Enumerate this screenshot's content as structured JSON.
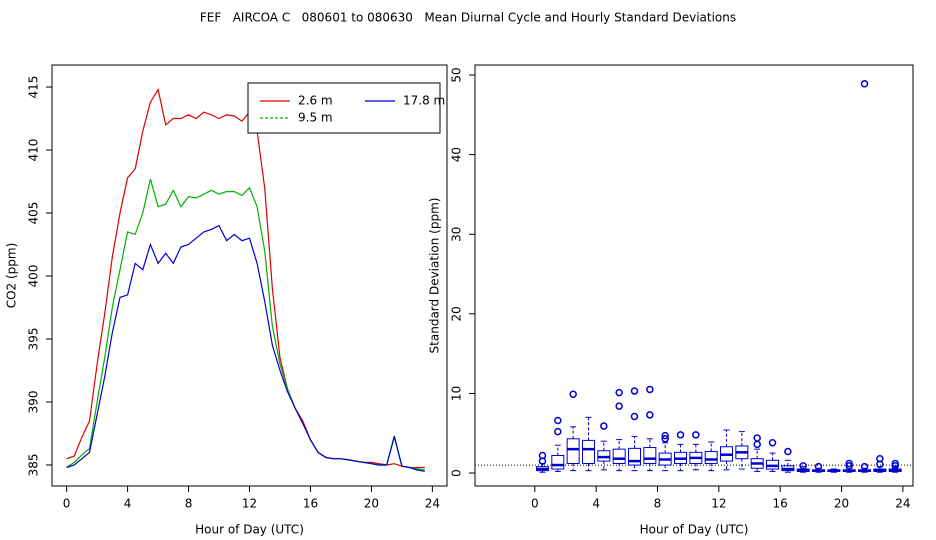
{
  "title": "FEF   AIRCOA C   080601 to 080630   Mean Diurnal Cycle and Hourly Standard Deviations",
  "chart_data": [
    {
      "type": "line",
      "xlabel": "Hour of Day (UTC)",
      "ylabel": "CO2 (ppm)",
      "xlim": [
        -0.96,
        24.96
      ],
      "ylim": [
        383.33,
        416.75
      ],
      "xticks": [
        0,
        4,
        8,
        12,
        16,
        20,
        24
      ],
      "yticks": [
        385,
        390,
        395,
        400,
        405,
        410,
        415
      ],
      "legend": "topright",
      "x": [
        0,
        0.5,
        1,
        1.5,
        2,
        2.5,
        3,
        3.5,
        4,
        4.5,
        5,
        5.5,
        6,
        6.5,
        7,
        7.5,
        8,
        8.5,
        9,
        9.5,
        10,
        10.5,
        11,
        11.5,
        12,
        12.5,
        13,
        13.5,
        14,
        14.5,
        15,
        15.5,
        16,
        16.5,
        17,
        17.5,
        18,
        18.5,
        19,
        19.5,
        20,
        20.5,
        21,
        21.5,
        22,
        22.5,
        23,
        23.5
      ],
      "series": [
        {
          "name": "2.6 m",
          "color": "#e00000",
          "values": [
            385.5,
            385.7,
            387.2,
            388.5,
            393,
            397,
            401.5,
            405,
            407.8,
            408.5,
            411.5,
            413.8,
            414.8,
            412,
            412.5,
            412.5,
            412.8,
            412.5,
            413,
            412.8,
            412.5,
            412.8,
            412.7,
            412.3,
            413,
            411.5,
            407,
            399,
            393.5,
            391,
            389.5,
            388.5,
            387,
            386,
            385.6,
            385.5,
            385.5,
            385.4,
            385.3,
            385.2,
            385.2,
            385.1,
            385,
            385.1,
            384.9,
            384.8,
            384.8,
            384.8
          ]
        },
        {
          "name": "9.5 m",
          "color": "#00b000",
          "values": [
            384.8,
            385.2,
            385.8,
            386.3,
            390,
            393.5,
            397.5,
            400.5,
            403.5,
            403.3,
            405,
            407.7,
            405.5,
            405.7,
            406.8,
            405.5,
            406.3,
            406.2,
            406.5,
            406.8,
            406.5,
            406.7,
            406.7,
            406.4,
            407,
            405.5,
            402,
            396,
            393,
            391,
            389.5,
            388.3,
            387,
            386,
            385.6,
            385.5,
            385.5,
            385.4,
            385.3,
            385.2,
            385.1,
            385,
            385,
            387.2,
            384.9,
            384.8,
            384.7,
            384.6
          ]
        },
        {
          "name": "17.8 m",
          "color": "#0000d0",
          "values": [
            384.8,
            385,
            385.5,
            386,
            389,
            392,
            395.5,
            398.3,
            398.5,
            401,
            400.5,
            402.5,
            401,
            401.8,
            401,
            402.3,
            402.5,
            403,
            403.5,
            403.7,
            404,
            402.8,
            403.3,
            402.8,
            403,
            401,
            398,
            394.5,
            392.5,
            390.8,
            389.5,
            388.3,
            387,
            386,
            385.6,
            385.5,
            385.5,
            385.4,
            385.3,
            385.2,
            385.1,
            385,
            385,
            387.3,
            384.9,
            384.8,
            384.6,
            384.5
          ]
        }
      ]
    },
    {
      "type": "boxplot",
      "xlabel": "Hour of Day (UTC)",
      "ylabel": "Standard Deviation (ppm)",
      "color": "#0000d0",
      "xlim": [
        -3.9,
        24.66
      ],
      "ylim": [
        -1.63,
        51.26
      ],
      "xticks": [
        0,
        4,
        8,
        12,
        16,
        20,
        24
      ],
      "yticks": [
        0,
        10,
        20,
        30,
        40,
        50
      ],
      "ref_line": 1,
      "x": [
        0.5,
        1.5,
        2.5,
        3.5,
        4.5,
        5.5,
        6.5,
        7.5,
        8.5,
        9.5,
        10.5,
        11.5,
        12.5,
        13.5,
        14.5,
        15.5,
        16.5,
        17.5,
        18.5,
        19.5,
        20.5,
        21.5,
        22.5,
        23.5
      ],
      "boxes": [
        {
          "min": 0.1,
          "q1": 0.3,
          "median": 0.5,
          "q3": 0.8,
          "max": 1.2,
          "outliers": [
            1.5,
            2.2
          ]
        },
        {
          "min": 0.2,
          "q1": 0.5,
          "median": 1.0,
          "q3": 2.2,
          "max": 3.5,
          "outliers": [
            5.2,
            6.6
          ]
        },
        {
          "min": 0.3,
          "q1": 1.2,
          "median": 3.0,
          "q3": 4.3,
          "max": 5.8,
          "outliers": [
            9.9
          ]
        },
        {
          "min": 0.3,
          "q1": 1.2,
          "median": 3.0,
          "q3": 4.1,
          "max": 7.0,
          "outliers": []
        },
        {
          "min": 0.4,
          "q1": 1.5,
          "median": 2.0,
          "q3": 2.8,
          "max": 4.0,
          "outliers": [
            5.9
          ]
        },
        {
          "min": 0.3,
          "q1": 1.2,
          "median": 1.8,
          "q3": 3.0,
          "max": 4.2,
          "outliers": [
            8.4,
            10.1
          ]
        },
        {
          "min": 0.3,
          "q1": 1.0,
          "median": 1.5,
          "q3": 3.1,
          "max": 4.6,
          "outliers": [
            7.1,
            10.3
          ]
        },
        {
          "min": 0.3,
          "q1": 1.2,
          "median": 1.8,
          "q3": 3.2,
          "max": 4.3,
          "outliers": [
            7.3,
            10.5
          ]
        },
        {
          "min": 0.3,
          "q1": 1.0,
          "median": 1.7,
          "q3": 2.5,
          "max": 3.8,
          "outliers": [
            4.3,
            4.7
          ]
        },
        {
          "min": 0.3,
          "q1": 1.2,
          "median": 1.8,
          "q3": 2.6,
          "max": 3.6,
          "outliers": [
            4.8
          ]
        },
        {
          "min": 0.4,
          "q1": 1.2,
          "median": 1.9,
          "q3": 2.6,
          "max": 3.6,
          "outliers": [
            4.8
          ]
        },
        {
          "min": 0.3,
          "q1": 1.2,
          "median": 1.7,
          "q3": 2.7,
          "max": 3.9,
          "outliers": []
        },
        {
          "min": 0.4,
          "q1": 1.5,
          "median": 2.3,
          "q3": 3.3,
          "max": 5.4,
          "outliers": []
        },
        {
          "min": 0.5,
          "q1": 1.8,
          "median": 2.6,
          "q3": 3.4,
          "max": 5.2,
          "outliers": []
        },
        {
          "min": 0.2,
          "q1": 0.6,
          "median": 1.2,
          "q3": 1.8,
          "max": 3.0,
          "outliers": [
            3.6,
            4.4
          ]
        },
        {
          "min": 0.2,
          "q1": 0.5,
          "median": 0.9,
          "q3": 1.6,
          "max": 2.5,
          "outliers": [
            3.8
          ]
        },
        {
          "min": 0.1,
          "q1": 0.3,
          "median": 0.5,
          "q3": 0.9,
          "max": 1.6,
          "outliers": [
            2.7
          ]
        },
        {
          "min": 0.1,
          "q1": 0.2,
          "median": 0.3,
          "q3": 0.5,
          "max": 0.8,
          "outliers": [
            0.9
          ]
        },
        {
          "min": 0.1,
          "q1": 0.2,
          "median": 0.3,
          "q3": 0.4,
          "max": 0.6,
          "outliers": [
            0.8
          ]
        },
        {
          "min": 0.1,
          "q1": 0.2,
          "median": 0.3,
          "q3": 0.4,
          "max": 0.5,
          "outliers": []
        },
        {
          "min": 0.1,
          "q1": 0.2,
          "median": 0.3,
          "q3": 0.4,
          "max": 0.6,
          "outliers": [
            0.9,
            1.2
          ]
        },
        {
          "min": 0.1,
          "q1": 0.2,
          "median": 0.3,
          "q3": 0.4,
          "max": 0.6,
          "outliers": [
            0.8,
            48.9
          ]
        },
        {
          "min": 0.1,
          "q1": 0.2,
          "median": 0.3,
          "q3": 0.5,
          "max": 0.8,
          "outliers": [
            1.1,
            1.8
          ]
        },
        {
          "min": 0.1,
          "q1": 0.2,
          "median": 0.3,
          "q3": 0.5,
          "max": 0.7,
          "outliers": [
            0.9,
            1.2
          ]
        }
      ]
    }
  ]
}
